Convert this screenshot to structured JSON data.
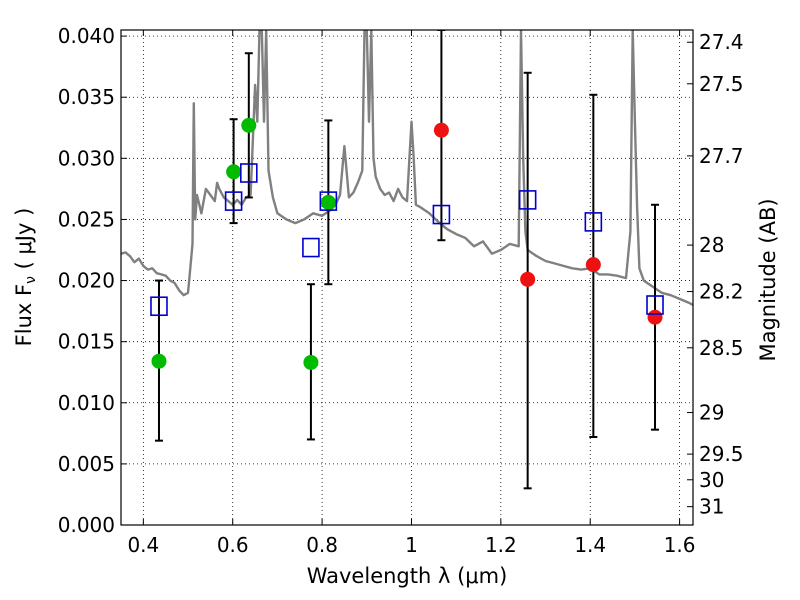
{
  "chart_data": {
    "type": "scatter",
    "xlabel": "Wavelength  λ (μm)",
    "ylabel": "Flux  F",
    "ylabel_sub": "ν",
    "ylabel_unit": "  ( μJy )",
    "y2label": "Magnitude (AB)",
    "xlim": [
      0.35,
      1.63
    ],
    "ylim": [
      0.0,
      0.0405
    ],
    "grid": true,
    "xticks": [
      0.4,
      0.6,
      0.8,
      1.0,
      1.2,
      1.4,
      1.6
    ],
    "xtick_labels": [
      "0.4",
      "0.6",
      "0.8",
      "1",
      "1.2",
      "1.4",
      "1.6"
    ],
    "yticks": [
      0.0,
      0.005,
      0.01,
      0.015,
      0.02,
      0.025,
      0.03,
      0.035,
      0.04
    ],
    "ytick_labels": [
      "0.000",
      "0.005",
      "0.010",
      "0.015",
      "0.020",
      "0.025",
      "0.030",
      "0.035",
      "0.040"
    ],
    "right_axis_ticks": [
      {
        "flux": 0.0395,
        "label": "27.4"
      },
      {
        "flux": 0.0361,
        "label": "27.5"
      },
      {
        "flux": 0.0302,
        "label": "27.7"
      },
      {
        "flux": 0.0229,
        "label": "28"
      },
      {
        "flux": 0.0191,
        "label": "28.2"
      },
      {
        "flux": 0.0145,
        "label": "28.5"
      },
      {
        "flux": 0.0092,
        "label": "29"
      },
      {
        "flux": 0.0058,
        "label": "29.5"
      },
      {
        "flux": 0.0037,
        "label": "30"
      },
      {
        "flux": 0.0015,
        "label": "31"
      }
    ],
    "model_spectrum": {
      "color": "#808080",
      "x": [
        0.35,
        0.36,
        0.37,
        0.38,
        0.39,
        0.4,
        0.41,
        0.42,
        0.43,
        0.44,
        0.45,
        0.46,
        0.47,
        0.48,
        0.49,
        0.5,
        0.505,
        0.51,
        0.513,
        0.516,
        0.52,
        0.53,
        0.54,
        0.55,
        0.56,
        0.565,
        0.57,
        0.58,
        0.59,
        0.6,
        0.61,
        0.62,
        0.63,
        0.64,
        0.65,
        0.655,
        0.66,
        0.665,
        0.67,
        0.675,
        0.68,
        0.69,
        0.7,
        0.72,
        0.74,
        0.76,
        0.78,
        0.8,
        0.82,
        0.83,
        0.84,
        0.85,
        0.86,
        0.87,
        0.88,
        0.89,
        0.895,
        0.9,
        0.905,
        0.91,
        0.915,
        0.92,
        0.93,
        0.94,
        0.95,
        0.96,
        0.97,
        0.98,
        0.99,
        1.0,
        1.005,
        1.01,
        1.02,
        1.04,
        1.06,
        1.08,
        1.1,
        1.12,
        1.14,
        1.16,
        1.18,
        1.2,
        1.22,
        1.24,
        1.245,
        1.25,
        1.255,
        1.26,
        1.28,
        1.3,
        1.32,
        1.34,
        1.36,
        1.38,
        1.4,
        1.42,
        1.44,
        1.46,
        1.48,
        1.49,
        1.495,
        1.5,
        1.505,
        1.51,
        1.52,
        1.54,
        1.56,
        1.58,
        1.6,
        1.62,
        1.63
      ],
      "y": [
        0.0222,
        0.0223,
        0.022,
        0.0215,
        0.0218,
        0.0212,
        0.0209,
        0.021,
        0.0206,
        0.0205,
        0.0204,
        0.02,
        0.0198,
        0.0192,
        0.0188,
        0.019,
        0.021,
        0.023,
        0.0345,
        0.025,
        0.027,
        0.0255,
        0.0275,
        0.027,
        0.0265,
        0.028,
        0.0275,
        0.0268,
        0.0265,
        0.0262,
        0.0266,
        0.0262,
        0.0268,
        0.027,
        0.036,
        0.033,
        0.0405,
        0.0405,
        0.033,
        0.0405,
        0.029,
        0.0268,
        0.0255,
        0.025,
        0.0247,
        0.025,
        0.0255,
        0.0253,
        0.0258,
        0.0262,
        0.027,
        0.031,
        0.0268,
        0.0272,
        0.028,
        0.029,
        0.0405,
        0.0405,
        0.033,
        0.0405,
        0.03,
        0.0285,
        0.0275,
        0.027,
        0.0272,
        0.0265,
        0.0275,
        0.0268,
        0.0265,
        0.033,
        0.03,
        0.0262,
        0.026,
        0.0255,
        0.0248,
        0.0242,
        0.0238,
        0.0235,
        0.0228,
        0.0232,
        0.0222,
        0.0225,
        0.023,
        0.0228,
        0.0405,
        0.03,
        0.024,
        0.0225,
        0.022,
        0.0216,
        0.0214,
        0.0212,
        0.021,
        0.0209,
        0.021,
        0.0205,
        0.0205,
        0.0204,
        0.0202,
        0.024,
        0.0405,
        0.033,
        0.026,
        0.021,
        0.02,
        0.0195,
        0.019,
        0.0188,
        0.0185,
        0.0182,
        0.018
      ]
    },
    "series": [
      {
        "marker": "circle",
        "color": "#00bb00",
        "points": [
          {
            "x": 0.435,
            "y": 0.0134
          },
          {
            "x": 0.602,
            "y": 0.0289
          },
          {
            "x": 0.636,
            "y": 0.0327
          },
          {
            "x": 0.775,
            "y": 0.0133
          },
          {
            "x": 0.814,
            "y": 0.0264
          }
        ]
      },
      {
        "marker": "circle",
        "color": "#ee1111",
        "points": [
          {
            "x": 1.067,
            "y": 0.0323
          },
          {
            "x": 1.26,
            "y": 0.0201
          },
          {
            "x": 1.407,
            "y": 0.0213
          },
          {
            "x": 1.545,
            "y": 0.017
          }
        ]
      },
      {
        "marker": "open-square",
        "color": "#0000cc",
        "points": [
          {
            "x": 0.435,
            "y": 0.0179
          },
          {
            "x": 0.602,
            "y": 0.0265
          },
          {
            "x": 0.636,
            "y": 0.0288
          },
          {
            "x": 0.775,
            "y": 0.0227
          },
          {
            "x": 0.814,
            "y": 0.0265
          },
          {
            "x": 1.067,
            "y": 0.0254
          },
          {
            "x": 1.26,
            "y": 0.0266
          },
          {
            "x": 1.407,
            "y": 0.0248
          },
          {
            "x": 1.545,
            "y": 0.018
          }
        ]
      }
    ],
    "error_bars": [
      {
        "x": 0.435,
        "y_low": 0.0069,
        "y_high": 0.02
      },
      {
        "x": 0.602,
        "y_low": 0.0247,
        "y_high": 0.0332
      },
      {
        "x": 0.636,
        "y_low": 0.0268,
        "y_high": 0.0386
      },
      {
        "x": 0.775,
        "y_low": 0.007,
        "y_high": 0.0197
      },
      {
        "x": 0.814,
        "y_low": 0.0197,
        "y_high": 0.0331
      },
      {
        "x": 1.067,
        "y_low": 0.0233,
        "y_high": 0.0405
      },
      {
        "x": 1.26,
        "y_low": 0.003,
        "y_high": 0.037
      },
      {
        "x": 1.407,
        "y_low": 0.0072,
        "y_high": 0.0352
      },
      {
        "x": 1.545,
        "y_low": 0.0078,
        "y_high": 0.0262
      }
    ],
    "error_bar_color": "#000000"
  }
}
